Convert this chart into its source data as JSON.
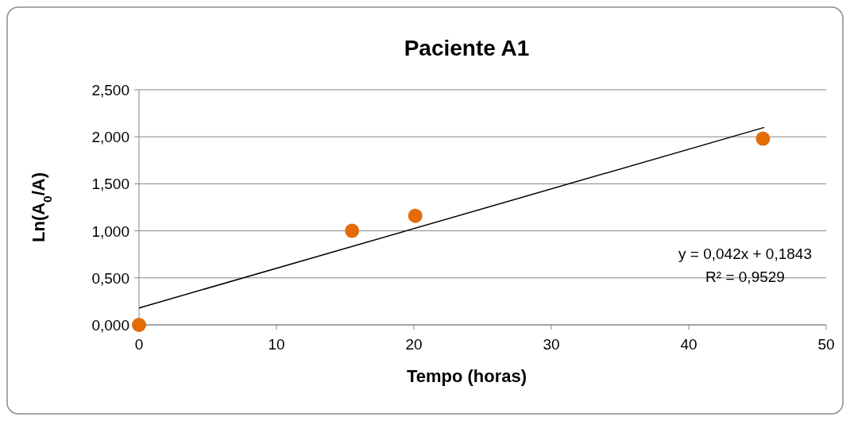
{
  "chart_data": {
    "type": "scatter",
    "title": "Paciente A1",
    "xlabel": "Tempo (horas)",
    "ylabel": "Ln(A$_{0}$/A)",
    "xlim": [
      0,
      50
    ],
    "xticks": [
      0,
      10,
      20,
      30,
      40,
      50
    ],
    "ylim": [
      0,
      2.5
    ],
    "yticks": [
      {
        "value": 0,
        "label": "0,000"
      },
      {
        "value": 0.5,
        "label": "0,500"
      },
      {
        "value": 1,
        "label": "1,000"
      },
      {
        "value": 1.5,
        "label": "1,500"
      },
      {
        "value": 2,
        "label": "2,000"
      },
      {
        "value": 2.5,
        "label": "2,500"
      }
    ],
    "grid": "y",
    "series": [
      {
        "marker": "circle",
        "color": "#e36c09",
        "x": [
          0,
          15.5,
          20.1,
          45.4
        ],
        "values": [
          0,
          1.0,
          1.16,
          1.98
        ]
      },
      {
        "type": "line",
        "color": "#000000",
        "x": [
          0,
          45.5
        ],
        "values": [
          0.18,
          2.1
        ]
      }
    ],
    "annotations": [
      "y = 0,042x + 0,1843",
      "R² = 0,9529"
    ]
  }
}
